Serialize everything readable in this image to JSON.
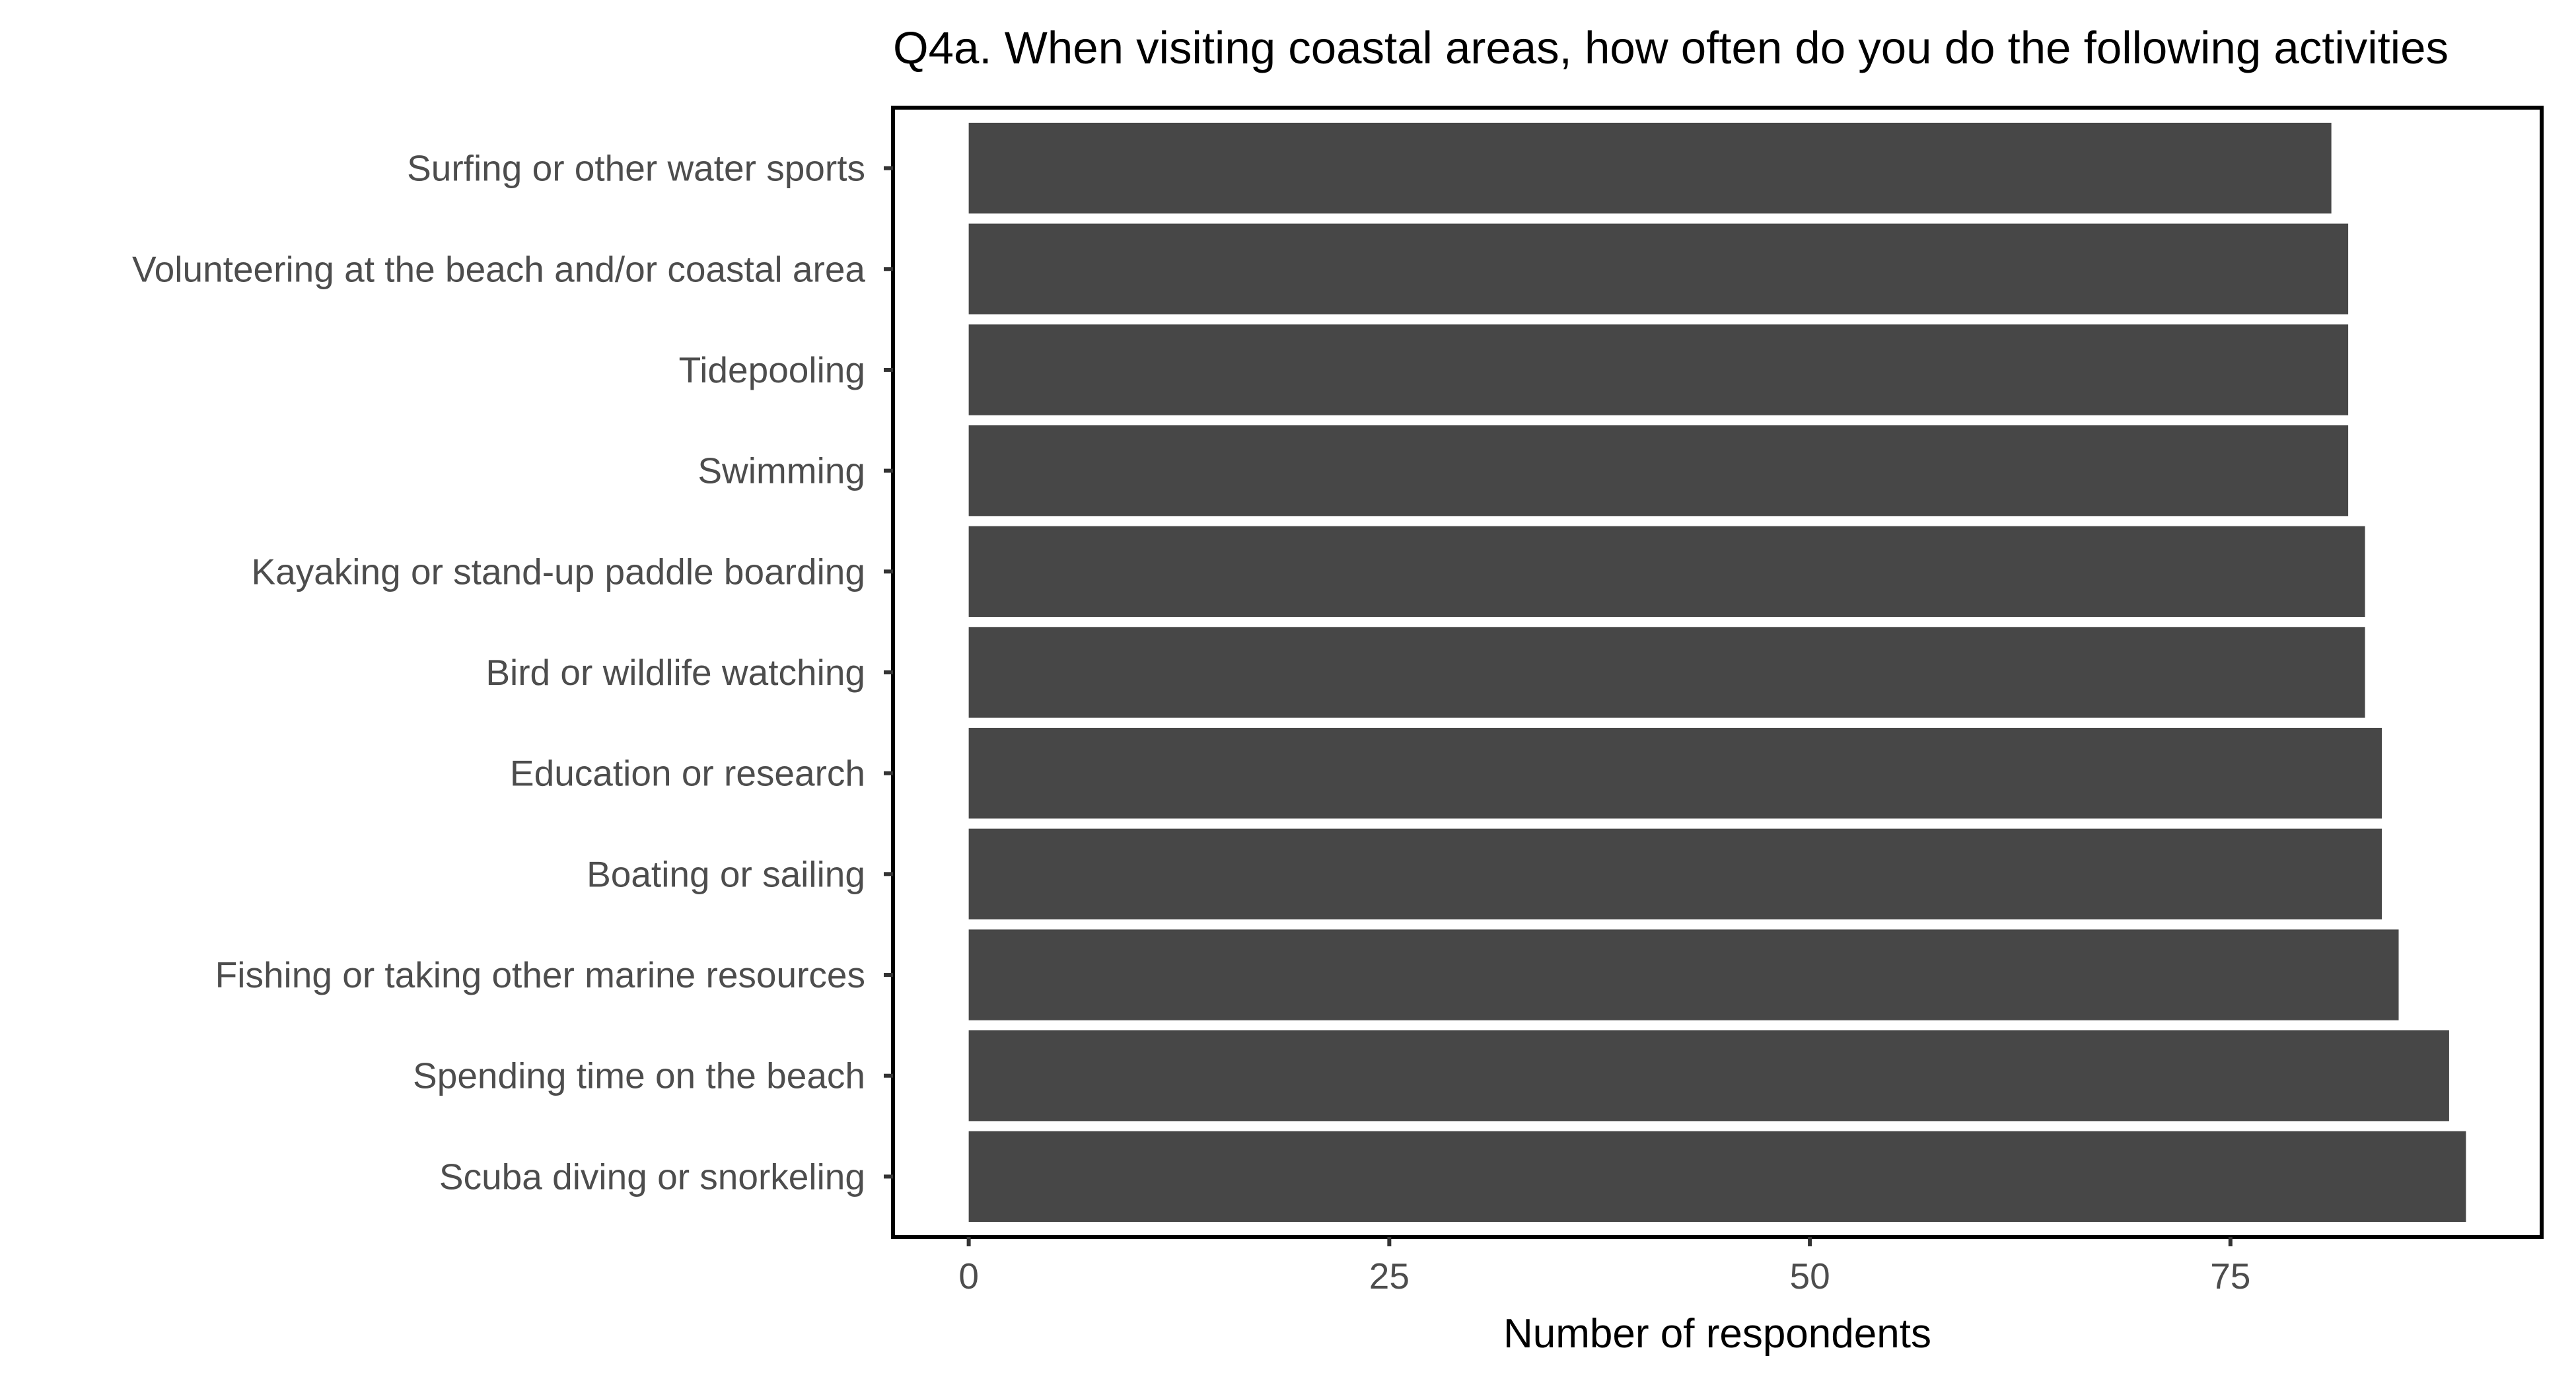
{
  "chart_data": {
    "type": "bar",
    "orientation": "horizontal",
    "title": "Q4a. When visiting coastal areas, how often do you do the following activities",
    "xlabel": "Number of respondents",
    "ylabel": "",
    "categories": [
      "Surfing or other water sports",
      "Volunteering at the beach and/or coastal area",
      "Tidepooling",
      "Swimming",
      "Kayaking or stand-up paddle boarding",
      "Bird or wildlife watching",
      "Education or research",
      "Boating or sailing",
      "Fishing or taking other marine resources",
      "Spending time on the beach",
      "Scuba diving or snorkeling"
    ],
    "values": [
      81,
      82,
      82,
      82,
      83,
      83,
      84,
      84,
      85,
      88,
      89
    ],
    "xlim": [
      -4.5,
      93.5
    ],
    "xticks": [
      0,
      25,
      50,
      75
    ],
    "grid": false,
    "legend": "none",
    "bar_color": "#474747"
  }
}
